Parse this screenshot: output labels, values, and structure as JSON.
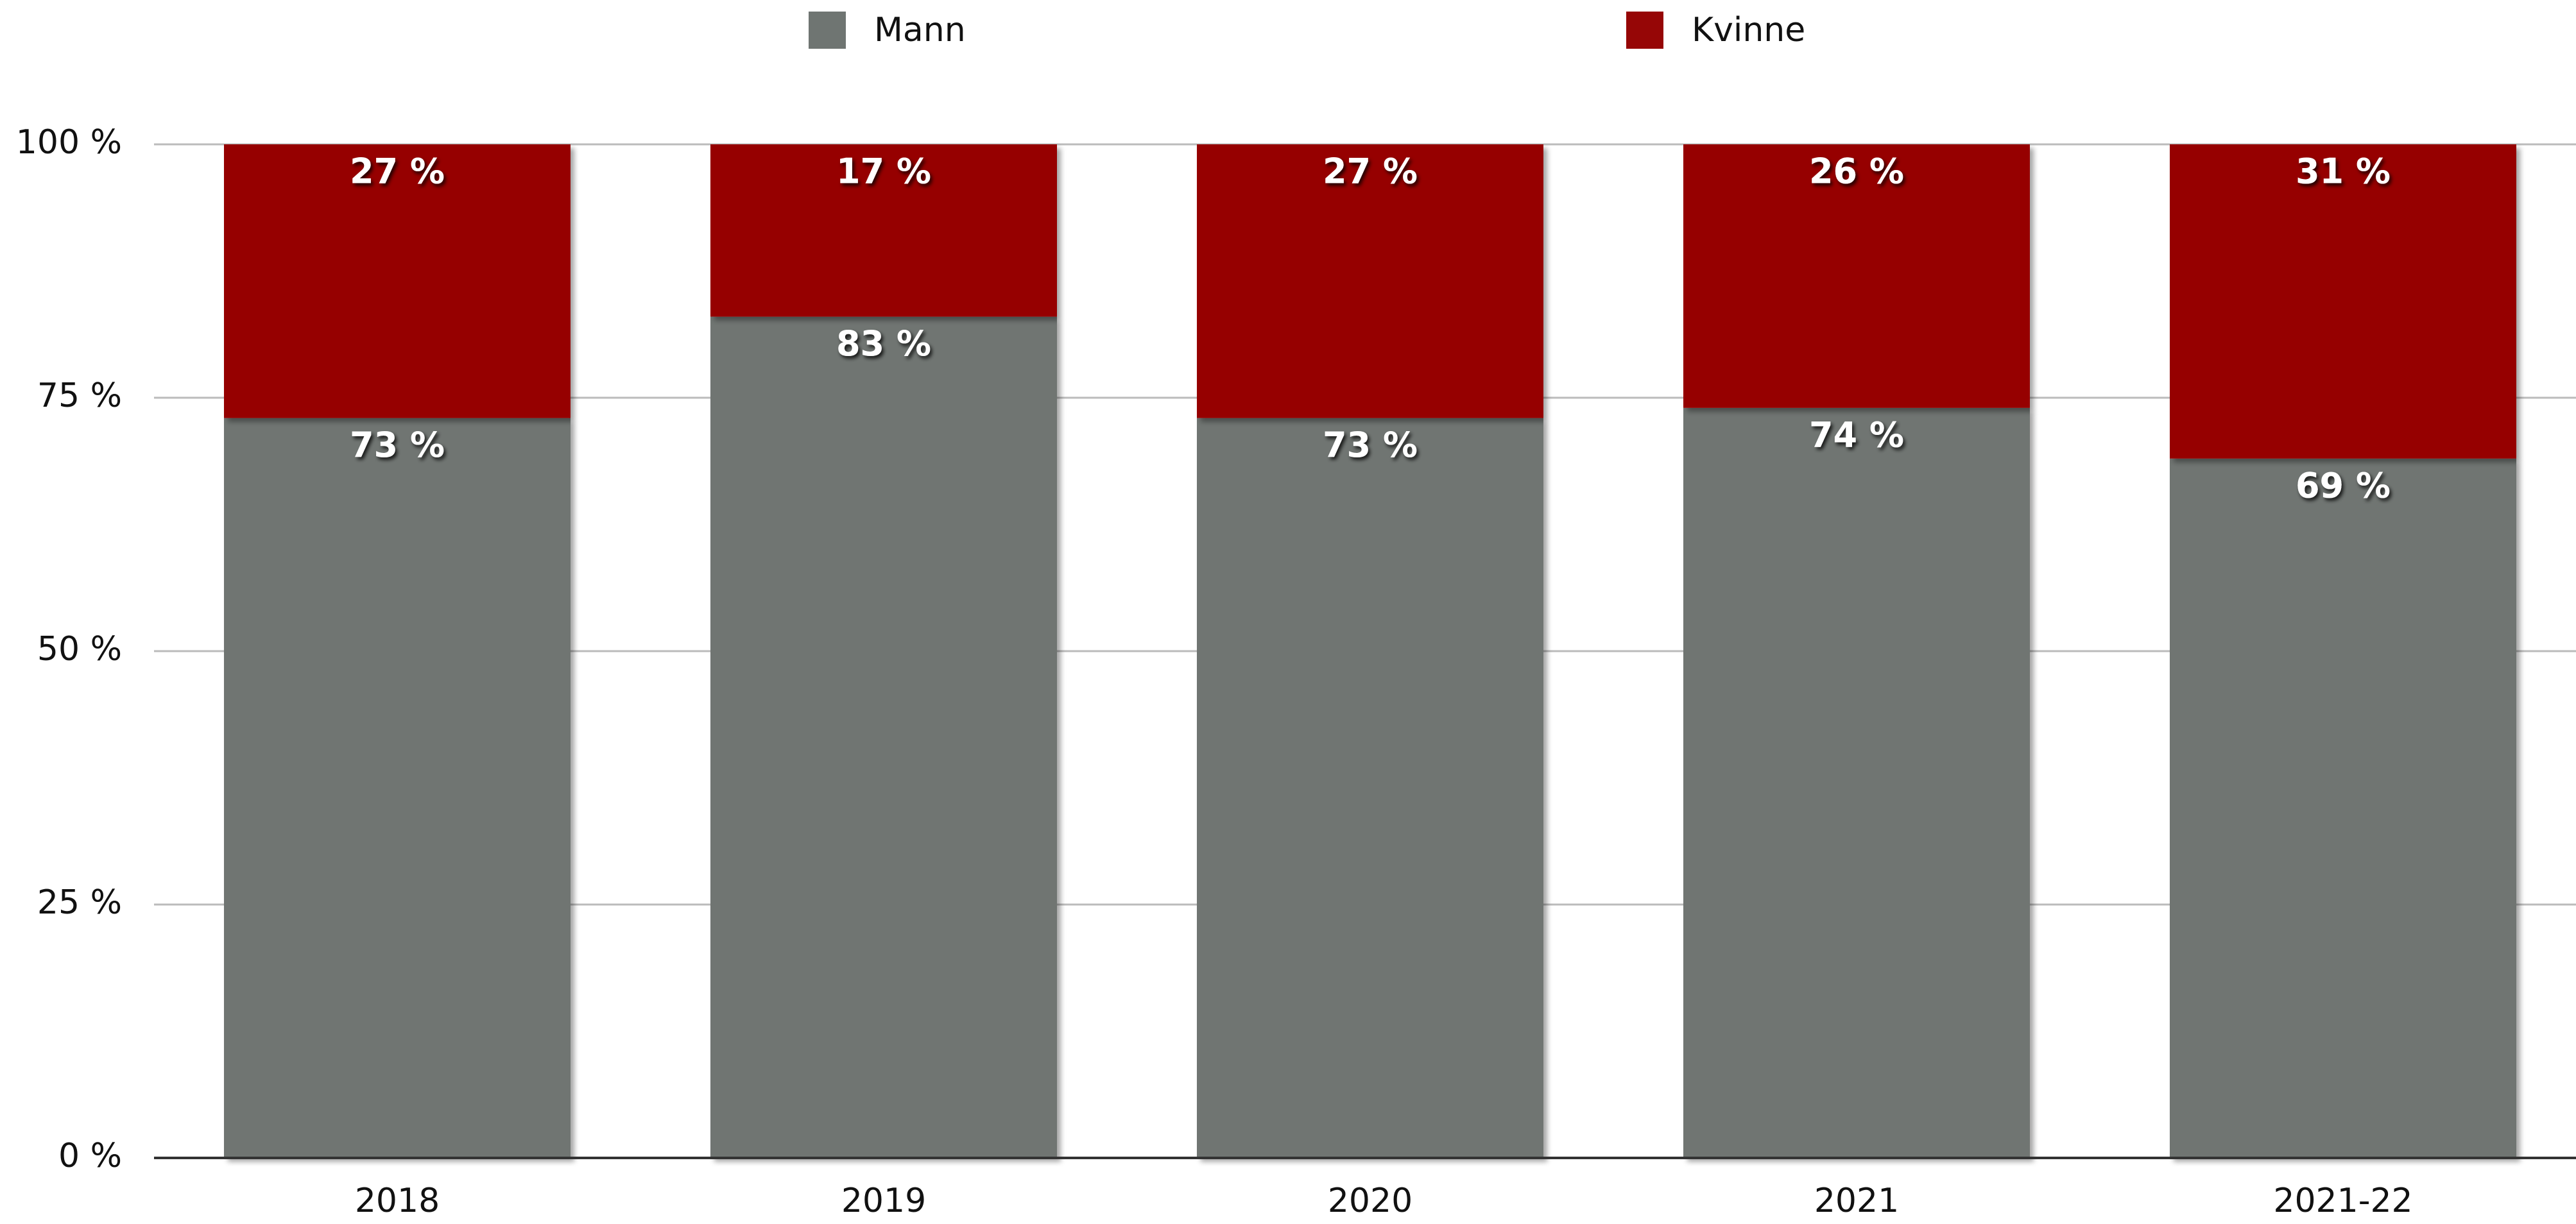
{
  "chart_data": {
    "type": "stacked_bar",
    "categories": [
      "2018",
      "2019",
      "2020",
      "2021",
      "2021-22"
    ],
    "series": [
      {
        "name": "Mann",
        "color": "#6f7572",
        "values": [
          73,
          83,
          73,
          74,
          69
        ],
        "value_labels": [
          "73 %",
          "83 %",
          "73 %",
          "74 %",
          "69 %"
        ]
      },
      {
        "name": "Kvinne",
        "color": "#960606",
        "values": [
          27,
          17,
          27,
          26,
          31
        ],
        "value_labels": [
          "27 %",
          "17 %",
          "27 %",
          "26 %",
          "31 %"
        ]
      }
    ],
    "ylim": [
      0,
      100
    ],
    "yticks": [
      {
        "value": 0,
        "label": "0 %"
      },
      {
        "value": 25,
        "label": "25 %"
      },
      {
        "value": 50,
        "label": "50 %"
      },
      {
        "value": 75,
        "label": "75 %"
      },
      {
        "value": 100,
        "label": "100 %"
      }
    ],
    "grid": true
  }
}
